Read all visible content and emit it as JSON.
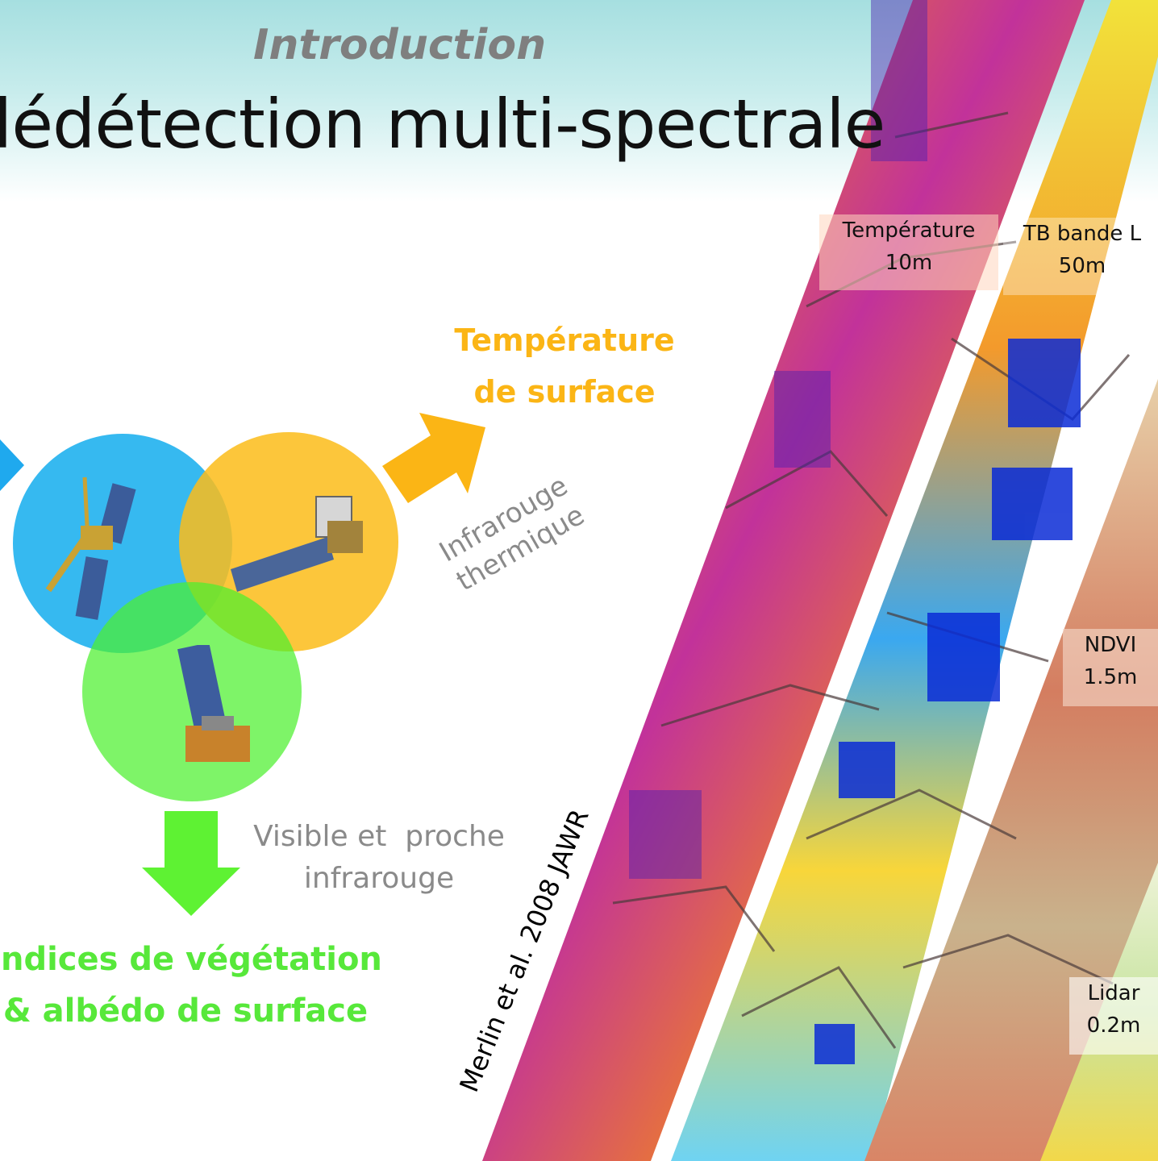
{
  "header": {
    "subtitle": "Introduction",
    "title": "lédétection multi-spectrale"
  },
  "labels": {
    "thermal_output": [
      "Température",
      "de surface"
    ],
    "thermal_band": [
      "Infrarouge",
      "thermique"
    ],
    "visible_band": [
      "Visible et  proche",
      "infrarouge"
    ],
    "vegetation_output": [
      "Indices de végétation",
      "& albédo de surface"
    ],
    "citation": "Merlin et al. 2008 JAWR"
  },
  "strips": [
    {
      "name": "temperature",
      "label": "Température",
      "resolution": "10m"
    },
    {
      "name": "tb-l-band",
      "label": "TB bande L",
      "resolution": "50m"
    },
    {
      "name": "ndvi",
      "label": "NDVI",
      "resolution": "1.5m"
    },
    {
      "name": "lidar",
      "label": "Lidar",
      "resolution": "0.2m"
    }
  ],
  "colors": {
    "blue_circle": "#2bb5ef",
    "orange_circle": "#fbbd1b",
    "green_circle": "#4cf02e",
    "orange_text": "#fbb515",
    "green_text": "#57e83a",
    "grey_text": "#8a8a8a"
  }
}
